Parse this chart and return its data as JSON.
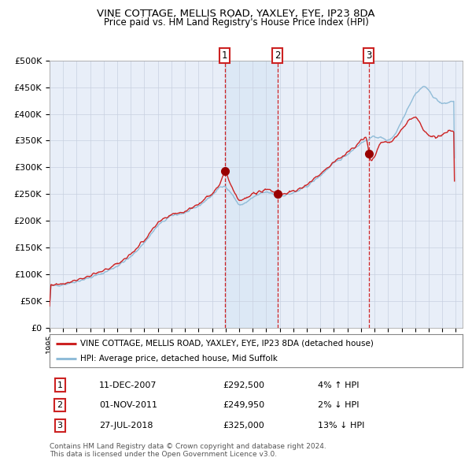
{
  "title1": "VINE COTTAGE, MELLIS ROAD, YAXLEY, EYE, IP23 8DA",
  "title2": "Price paid vs. HM Land Registry's House Price Index (HPI)",
  "legend_line1": "VINE COTTAGE, MELLIS ROAD, YAXLEY, EYE, IP23 8DA (detached house)",
  "legend_line2": "HPI: Average price, detached house, Mid Suffolk",
  "transactions": [
    {
      "num": 1,
      "date": "11-DEC-2007",
      "price": 292500,
      "hpi_pct": "4% ↑ HPI",
      "x_year": 2007.94
    },
    {
      "num": 2,
      "date": "01-NOV-2011",
      "price": 249950,
      "hpi_pct": "2% ↓ HPI",
      "x_year": 2011.83
    },
    {
      "num": 3,
      "date": "27-JUL-2018",
      "price": 325000,
      "hpi_pct": "13% ↓ HPI",
      "x_year": 2018.57
    }
  ],
  "transaction_prices": [
    292500,
    249950,
    325000
  ],
  "footnote1": "Contains HM Land Registry data © Crown copyright and database right 2024.",
  "footnote2": "This data is licensed under the Open Government Licence v3.0.",
  "ylim": [
    0,
    500000
  ],
  "xlim_start": 1995.0,
  "xlim_end": 2025.5,
  "plot_bg": "#e8eef8",
  "grid_color": "#c8d0e0",
  "hpi_color": "#90bcd8",
  "price_color": "#cc2222",
  "shade_color": "#c8dff0",
  "vline_color": "#cc0000",
  "dot_color": "#990000",
  "hpi_anchors_t": [
    1995.0,
    1996.0,
    1997.0,
    1998.0,
    1999.0,
    2000.0,
    2001.0,
    2002.0,
    2003.0,
    2004.0,
    2005.0,
    2006.0,
    2007.0,
    2007.5,
    2008.0,
    2008.5,
    2009.0,
    2009.3,
    2009.7,
    2010.0,
    2010.5,
    2011.0,
    2011.5,
    2011.83,
    2012.0,
    2012.5,
    2013.0,
    2013.5,
    2014.0,
    2014.5,
    2015.0,
    2015.5,
    2016.0,
    2016.5,
    2017.0,
    2017.5,
    2018.0,
    2018.5,
    2018.57,
    2019.0,
    2019.5,
    2020.0,
    2020.5,
    2021.0,
    2021.5,
    2022.0,
    2022.5,
    2022.75,
    2023.0,
    2023.5,
    2024.0,
    2024.5,
    2024.9
  ],
  "hpi_anchors_v": [
    78000,
    81000,
    87000,
    94000,
    103000,
    116000,
    133000,
    160000,
    192000,
    210000,
    215000,
    228000,
    248000,
    262000,
    265000,
    248000,
    228000,
    232000,
    238000,
    244000,
    250000,
    254000,
    250000,
    248000,
    247000,
    249000,
    252000,
    258000,
    265000,
    275000,
    285000,
    297000,
    308000,
    316000,
    325000,
    336000,
    346000,
    352000,
    353000,
    358000,
    355000,
    350000,
    362000,
    388000,
    415000,
    438000,
    450000,
    452000,
    442000,
    428000,
    418000,
    422000,
    425000
  ],
  "prop_anchors_t": [
    1995.0,
    1996.0,
    1997.0,
    1998.0,
    1999.0,
    2000.0,
    2001.0,
    2002.0,
    2003.0,
    2004.0,
    2005.0,
    2006.0,
    2007.0,
    2007.5,
    2007.94,
    2008.2,
    2008.6,
    2009.0,
    2009.5,
    2010.0,
    2010.5,
    2011.0,
    2011.5,
    2011.83,
    2012.0,
    2012.5,
    2013.0,
    2013.5,
    2014.0,
    2014.5,
    2015.0,
    2015.5,
    2016.0,
    2016.5,
    2017.0,
    2017.5,
    2018.0,
    2018.4,
    2018.57,
    2018.7,
    2019.0,
    2019.3,
    2019.5,
    2020.0,
    2020.5,
    2021.0,
    2021.5,
    2022.0,
    2022.3,
    2022.6,
    2023.0,
    2023.5,
    2024.0,
    2024.5,
    2024.9
  ],
  "prop_anchors_v": [
    80000,
    83000,
    90000,
    97000,
    107000,
    120000,
    138000,
    165000,
    196000,
    213000,
    218000,
    232000,
    252000,
    268000,
    292500,
    278000,
    255000,
    238000,
    242000,
    250000,
    255000,
    260000,
    255000,
    249950,
    250000,
    252000,
    255000,
    260000,
    268000,
    278000,
    288000,
    300000,
    310000,
    318000,
    328000,
    340000,
    350000,
    358000,
    325000,
    310000,
    320000,
    340000,
    348000,
    345000,
    355000,
    372000,
    388000,
    395000,
    385000,
    370000,
    360000,
    355000,
    362000,
    368000,
    365000
  ]
}
